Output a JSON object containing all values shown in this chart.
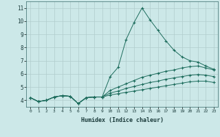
{
  "xlabel": "Humidex (Indice chaleur)",
  "ylabel": "",
  "xlim": [
    -0.5,
    23.5
  ],
  "ylim": [
    3.5,
    11.5
  ],
  "xtick_labels": [
    "0",
    "1",
    "2",
    "3",
    "4",
    "5",
    "6",
    "7",
    "8",
    "9",
    "10",
    "11",
    "12",
    "13",
    "14",
    "15",
    "16",
    "17",
    "18",
    "19",
    "20",
    "21",
    "22",
    "23"
  ],
  "ytick_labels": [
    "4",
    "5",
    "6",
    "7",
    "8",
    "9",
    "10",
    "11"
  ],
  "ytick_vals": [
    4,
    5,
    6,
    7,
    8,
    9,
    10,
    11
  ],
  "background_color": "#cce8e8",
  "grid_color": "#b0cccc",
  "line_color": "#1a6a5a",
  "series": [
    [
      4.2,
      3.9,
      4.0,
      4.25,
      4.35,
      4.3,
      3.75,
      4.2,
      4.25,
      4.25,
      5.8,
      6.5,
      8.6,
      9.9,
      11.0,
      10.1,
      9.3,
      8.5,
      7.8,
      7.3,
      7.0,
      6.9,
      6.6,
      6.35
    ],
    [
      4.2,
      3.9,
      4.0,
      4.25,
      4.35,
      4.3,
      3.75,
      4.2,
      4.25,
      4.25,
      4.75,
      5.0,
      5.25,
      5.5,
      5.75,
      5.9,
      6.05,
      6.2,
      6.3,
      6.45,
      6.55,
      6.6,
      6.45,
      6.3
    ],
    [
      4.2,
      3.9,
      4.0,
      4.25,
      4.35,
      4.3,
      3.75,
      4.2,
      4.25,
      4.25,
      4.55,
      4.7,
      4.9,
      5.05,
      5.2,
      5.35,
      5.45,
      5.6,
      5.7,
      5.8,
      5.9,
      5.95,
      5.9,
      5.8
    ],
    [
      4.2,
      3.9,
      4.0,
      4.25,
      4.35,
      4.3,
      3.75,
      4.2,
      4.25,
      4.25,
      4.4,
      4.5,
      4.6,
      4.7,
      4.8,
      4.9,
      5.0,
      5.1,
      5.2,
      5.3,
      5.4,
      5.45,
      5.45,
      5.35
    ]
  ]
}
